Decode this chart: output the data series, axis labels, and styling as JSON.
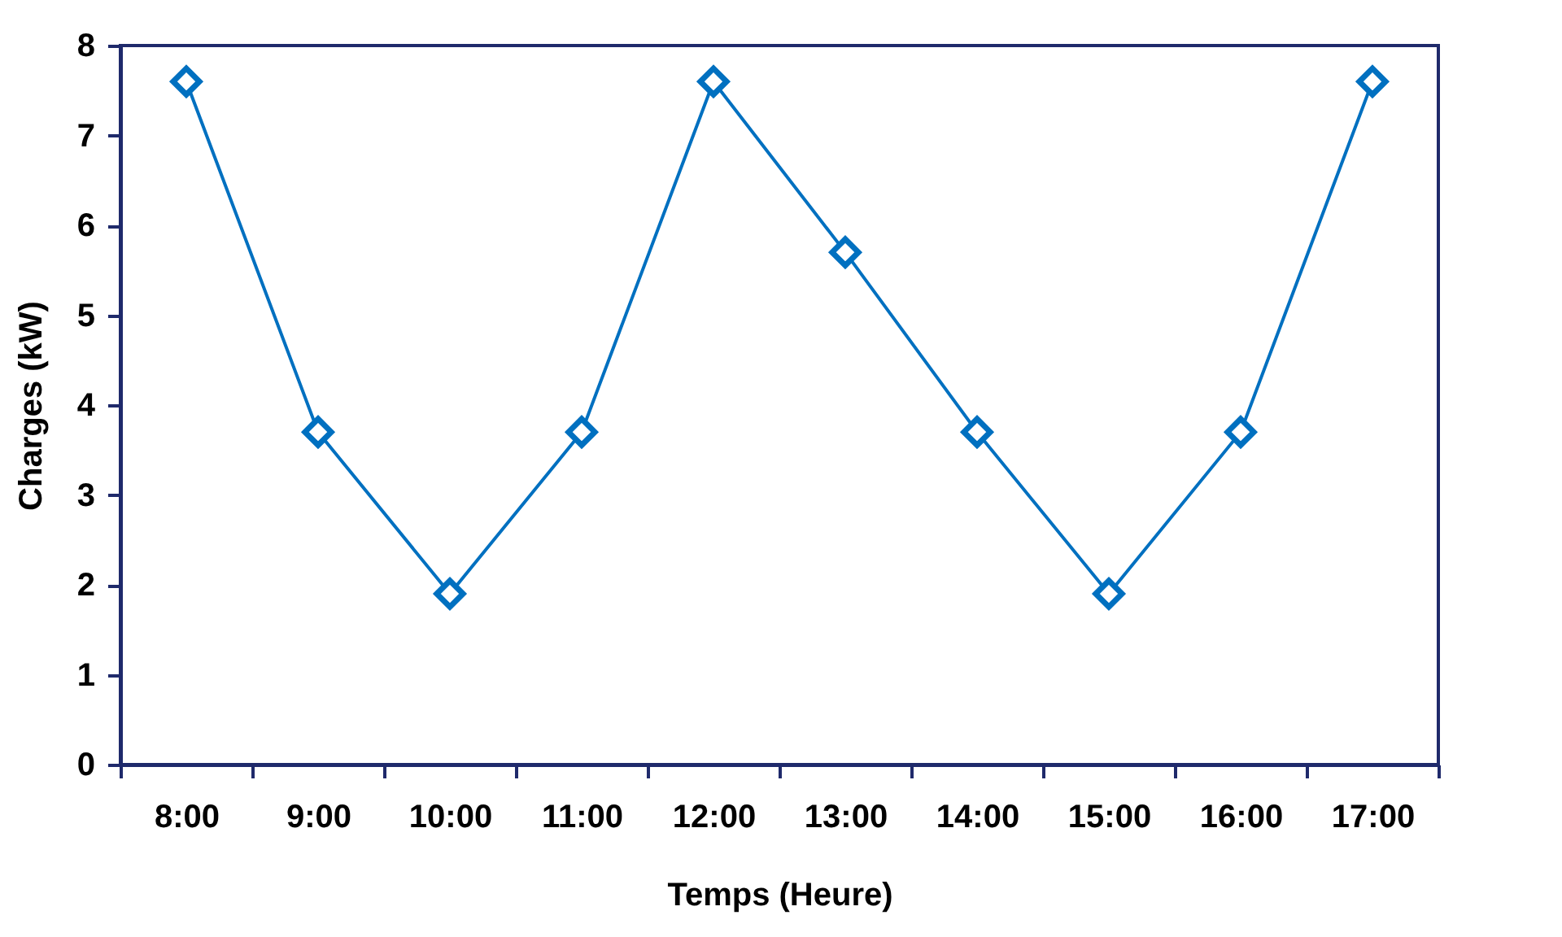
{
  "chart_data": {
    "type": "line",
    "xlabel": "Temps (Heure)",
    "ylabel": "Charges (kW)",
    "categories": [
      "8:00",
      "9:00",
      "10:00",
      "11:00",
      "12:00",
      "13:00",
      "14:00",
      "15:00",
      "16:00",
      "17:00"
    ],
    "series": [
      {
        "color": "#0070c0",
        "values": [
          7.6,
          3.7,
          1.9,
          3.7,
          7.6,
          5.7,
          3.7,
          1.9,
          3.7,
          7.6
        ]
      }
    ],
    "ylim": [
      0,
      8
    ],
    "yticks": [
      0,
      1,
      2,
      3,
      4,
      5,
      6,
      7,
      8
    ],
    "grid": false,
    "legend": false,
    "marker": "diamond",
    "line_style": "solid"
  }
}
